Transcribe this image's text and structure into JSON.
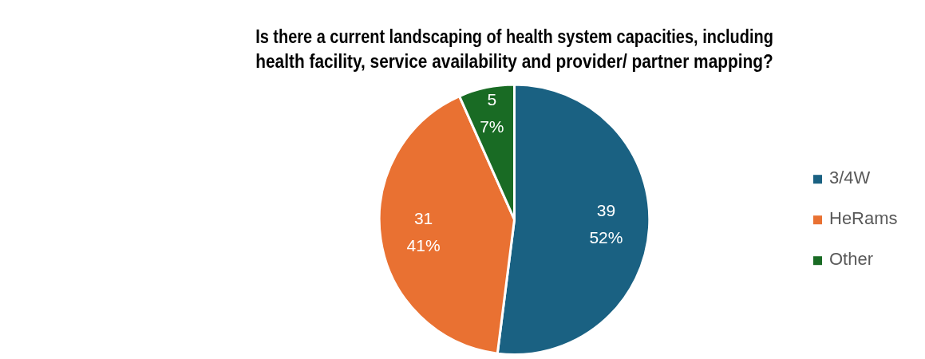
{
  "chart_data": {
    "type": "pie",
    "title": "Is there a current landscaping of health system capacities, including\nhealth facility, service availability and provider/ partner mapping?",
    "categories": [
      "3/4W",
      "HeRams",
      "Other"
    ],
    "values": [
      39,
      31,
      5
    ],
    "colors": [
      "#1a6182",
      "#e97132",
      "#196b24"
    ],
    "value_labels": [
      "39\n52%",
      "31\n41%",
      "5\n7%"
    ],
    "legend": "right"
  }
}
